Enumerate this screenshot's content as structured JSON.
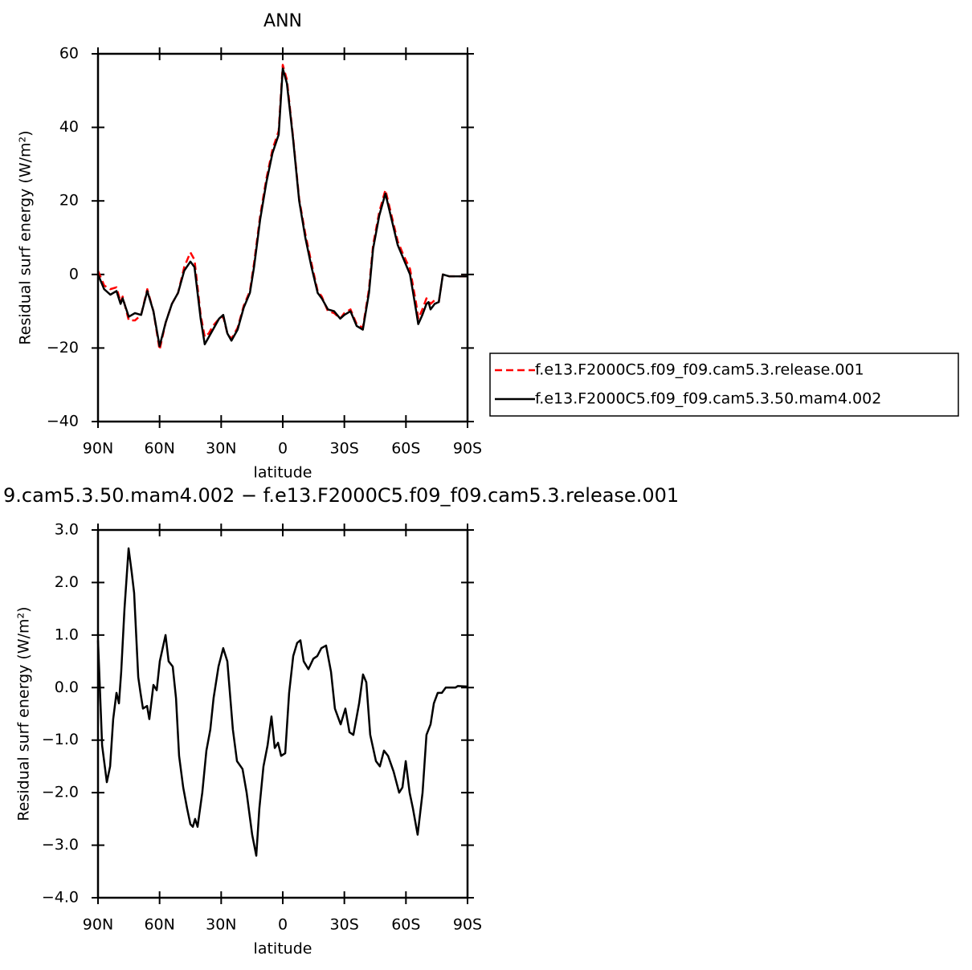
{
  "chart_data": [
    {
      "type": "line",
      "title": "ANN",
      "xlabel": "latitude",
      "ylabel": "Residual surf energy (W/m²)",
      "x": [
        90,
        87,
        84,
        81,
        79,
        78,
        75,
        72,
        69,
        66,
        63,
        60,
        57,
        54,
        51,
        48,
        45,
        43,
        40,
        38,
        36,
        34,
        31,
        29,
        27,
        25,
        22,
        19,
        16,
        14,
        11,
        8,
        5,
        2,
        0,
        -2,
        -5,
        -8,
        -11,
        -14,
        -17,
        -19,
        -22,
        -25,
        -28,
        -30,
        -33,
        -36,
        -39,
        -42,
        -44,
        -47,
        -50,
        -53,
        -56,
        -59,
        -62,
        -65,
        -66,
        -68,
        -70,
        -71,
        -72,
        -74,
        -76,
        -78,
        -81,
        -85,
        -90
      ],
      "series": [
        {
          "name": "f.e13.F2000C5.f09_f09.cam5.3.release.001",
          "color": "#ff0000",
          "dashed": true,
          "values": [
            1,
            -3,
            -4,
            -3.5,
            -7.5,
            -6,
            -12.5,
            -12.5,
            -11,
            -4,
            -10,
            -20.5,
            -13,
            -8,
            -5,
            2,
            6,
            4,
            -11,
            -17,
            -16,
            -14,
            -12,
            -11.5,
            -16,
            -17.5,
            -14.5,
            -8.5,
            -4.5,
            3,
            16,
            26,
            34,
            39,
            57,
            53,
            37.5,
            20.5,
            11,
            3,
            -4.5,
            -6,
            -10,
            -10.5,
            -12,
            -10.5,
            -9.5,
            -13.5,
            -14.5,
            -4,
            8,
            17,
            23,
            16,
            9,
            5,
            1.5,
            -8,
            -12,
            -9.5,
            -6.5,
            -7,
            -8,
            -7,
            -7.5,
            0,
            -0.5,
            -0.5,
            -0.5
          ]
        },
        {
          "name": "f.e13.F2000C5.f09_f09.cam5.3.50.mam4.002",
          "color": "#000000",
          "dashed": false,
          "values": [
            0,
            -4,
            -5.5,
            -4.5,
            -8,
            -6.5,
            -11.5,
            -10.5,
            -11,
            -4.5,
            -10,
            -19.5,
            -13,
            -8,
            -5,
            1,
            3.5,
            2,
            -12,
            -19,
            -17,
            -15,
            -12,
            -11,
            -16,
            -18,
            -15,
            -9,
            -5,
            2,
            15,
            25,
            33,
            38,
            56,
            52,
            37,
            20,
            10,
            2,
            -5,
            -6.5,
            -9.5,
            -10,
            -12,
            -11,
            -10,
            -14,
            -15,
            -5,
            7,
            16,
            22,
            15,
            8,
            4,
            0,
            -10,
            -13.5,
            -11,
            -8,
            -7.5,
            -9.5,
            -8,
            -7.5,
            0,
            -0.5,
            -0.5,
            -0.5
          ]
        }
      ],
      "xlim": [
        90,
        -90
      ],
      "xticks": [
        {
          "value": 90,
          "label": "90N"
        },
        {
          "value": 60,
          "label": "60N"
        },
        {
          "value": 30,
          "label": "30N"
        },
        0,
        {
          "value": -30,
          "label": "30S"
        },
        {
          "value": -60,
          "label": "60S"
        },
        {
          "value": -90,
          "label": "90S"
        }
      ],
      "ylim": [
        -40,
        60
      ],
      "yticks": [
        {
          "value": -40,
          "label": "−40"
        },
        {
          "value": -20,
          "label": "−20"
        },
        0,
        20,
        40,
        60
      ],
      "legend": "right"
    },
    {
      "type": "line",
      "title": "9.cam5.3.50.mam4.002 − f.e13.F2000C5.f09_f09.cam5.3.release.001",
      "xlabel": "latitude",
      "ylabel": "Residual surf energy (W/m²)",
      "x": [
        90,
        88,
        85.7,
        84.1,
        82.6,
        81,
        79.8,
        78.7,
        77.1,
        75.1,
        73.6,
        72.4,
        70.4,
        69.3,
        68.1,
        66.1,
        65,
        63,
        61.4,
        59.9,
        57.1,
        55.6,
        53.6,
        52,
        50.5,
        48.5,
        46.6,
        45,
        43.8,
        42.7,
        41.5,
        39.2,
        37.2,
        35.3,
        33.7,
        31.3,
        29,
        27,
        24.3,
        22.3,
        19.6,
        17.6,
        14.9,
        12.9,
        11.4,
        9.4,
        7.4,
        5.5,
        3.9,
        2.3,
        0.8,
        -1.2,
        -3.1,
        -5.1,
        -7,
        -8.6,
        -10.2,
        -12.5,
        -14.9,
        -16.8,
        -18.8,
        -21.1,
        -23.5,
        -25.4,
        -28.2,
        -30.5,
        -32.5,
        -34.4,
        -37.2,
        -39.1,
        -40.7,
        -42.6,
        -45.4,
        -47.3,
        -49.3,
        -51.3,
        -54,
        -56.7,
        -58.3,
        -59.9,
        -61.8,
        -63.4,
        -65.7,
        -68.1,
        -70,
        -72,
        -73.6,
        -75.5,
        -77.5,
        -79.4,
        -84.1,
        -85.3,
        -90
      ],
      "values": [
        0.9,
        -1.1,
        -1.8,
        -1.5,
        -0.6,
        -0.1,
        -0.3,
        0.3,
        1.5,
        2.65,
        2.2,
        1.8,
        0.2,
        -0.1,
        -0.4,
        -0.35,
        -0.6,
        0.05,
        -0.05,
        0.5,
        1.0,
        0.5,
        0.4,
        -0.2,
        -1.3,
        -1.9,
        -2.3,
        -2.6,
        -2.65,
        -2.5,
        -2.65,
        -2.0,
        -1.2,
        -0.8,
        -0.2,
        0.4,
        0.75,
        0.5,
        -0.8,
        -1.4,
        -1.55,
        -2.0,
        -2.8,
        -3.2,
        -2.3,
        -1.5,
        -1.1,
        -0.55,
        -1.15,
        -1.05,
        -1.3,
        -1.25,
        -0.1,
        0.6,
        0.85,
        0.9,
        0.5,
        0.35,
        0.55,
        0.6,
        0.75,
        0.8,
        0.3,
        -0.4,
        -0.7,
        -0.4,
        -0.85,
        -0.9,
        -0.3,
        0.25,
        0.1,
        -0.9,
        -1.4,
        -1.5,
        -1.2,
        -1.3,
        -1.6,
        -2.0,
        -1.9,
        -1.4,
        -2.0,
        -2.3,
        -2.8,
        -2.0,
        -0.9,
        -0.7,
        -0.3,
        -0.1,
        -0.1,
        0.0,
        0.0,
        0.03,
        0.02
      ],
      "color": "#000000",
      "xlim": [
        90,
        -90
      ],
      "xticks": [
        {
          "value": 90,
          "label": "90N"
        },
        {
          "value": 60,
          "label": "60N"
        },
        {
          "value": 30,
          "label": "30N"
        },
        0,
        {
          "value": -30,
          "label": "30S"
        },
        {
          "value": -60,
          "label": "60S"
        },
        {
          "value": -90,
          "label": "90S"
        }
      ],
      "ylim": [
        -4,
        3
      ],
      "yticks": [
        {
          "value": -4,
          "label": "−4.0"
        },
        {
          "value": -3,
          "label": "−3.0"
        },
        {
          "value": -2,
          "label": "−2.0"
        },
        {
          "value": -1,
          "label": "−1.0"
        },
        {
          "value": 0,
          "label": "0.0"
        },
        {
          "value": 1,
          "label": "1.0"
        },
        {
          "value": 2,
          "label": "2.0"
        },
        {
          "value": 3,
          "label": "3.0"
        }
      ]
    }
  ]
}
